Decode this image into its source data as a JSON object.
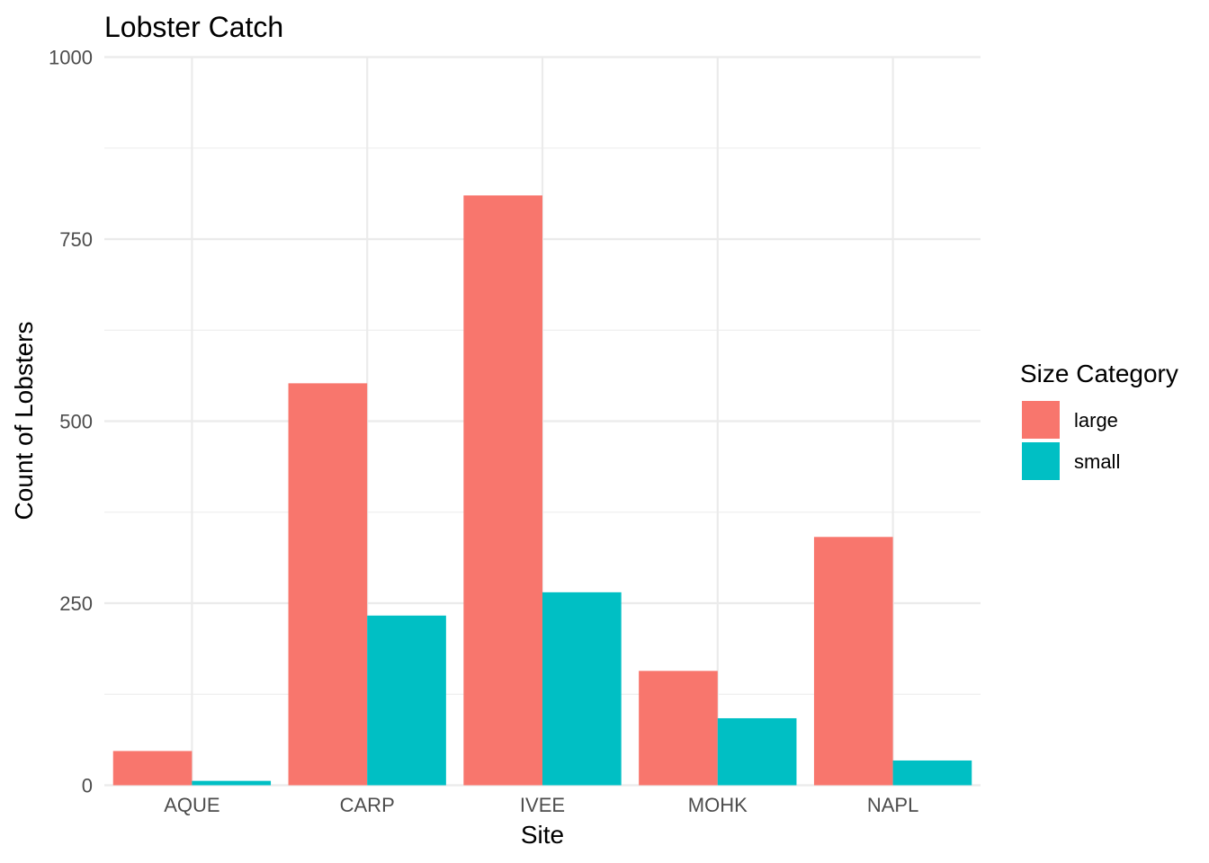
{
  "chart_data": {
    "type": "bar",
    "title": "Lobster Catch",
    "xlabel": "Site",
    "ylabel": "Count of Lobsters",
    "categories": [
      "AQUE",
      "CARP",
      "IVEE",
      "MOHK",
      "NAPL"
    ],
    "series": [
      {
        "name": "large",
        "color": "#F8766D",
        "values": [
          47,
          552,
          810,
          157,
          341
        ]
      },
      {
        "name": "small",
        "color": "#00BFC4",
        "values": [
          6,
          233,
          265,
          92,
          34
        ]
      }
    ],
    "ylim": [
      0,
      1000
    ],
    "yticks": [
      0,
      250,
      500,
      750,
      1000
    ],
    "yticks_labels": [
      "0",
      "250",
      "500",
      "750",
      "1000"
    ],
    "grid": true,
    "legend": {
      "title": "Size Category",
      "placement": "right"
    }
  }
}
